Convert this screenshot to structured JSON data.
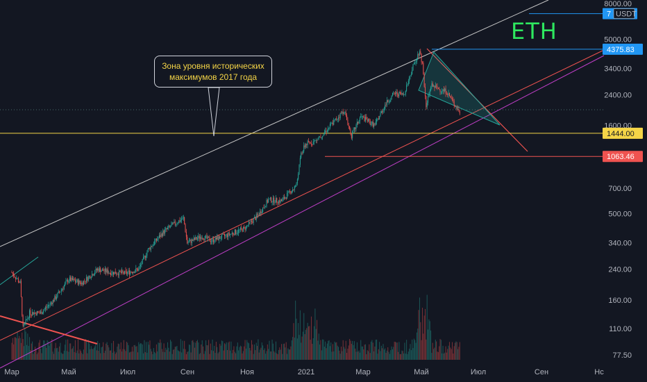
{
  "symbol_label": "ETH",
  "annotation": {
    "line1": "Зона уровня исторических",
    "line2": "максимумов 2017 года"
  },
  "colors": {
    "background": "#131722",
    "up": "#26a69a",
    "down": "#ef5350",
    "axis_text": "#b2b5be",
    "yellow_level": "#f5d547",
    "red_level": "#ef5350",
    "blue_tag": "#2196f3",
    "white_line": "#c8c8c8",
    "magenta_line": "#c03fc8",
    "eth_text": "#2ee85f"
  },
  "chart_data": {
    "type": "candlestick",
    "scale": "log",
    "y_ticks": [
      "8000.00",
      "5000.00",
      "3400.00",
      "2400.00",
      "1600.00",
      "1063.46",
      "700.00",
      "500.00",
      "340.00",
      "240.00",
      "160.00",
      "110.00",
      "77.50"
    ],
    "y_tick_values": [
      8000,
      5000,
      3400,
      2400,
      1600,
      1063.46,
      700,
      500,
      340,
      240,
      160,
      110,
      77.5
    ],
    "x_ticks": [
      "Мар",
      "Май",
      "Июл",
      "Сен",
      "Ноя",
      "2021",
      "Мар",
      "Май",
      "Июл",
      "Сен",
      "Нс"
    ],
    "price_tags": [
      {
        "label": "7",
        "value": 7000,
        "bg": "#2196f3",
        "fg": "#ffffff",
        "suffix": "USDT"
      },
      {
        "label": "4375.83",
        "value": 4375.83,
        "bg": "#2196f3",
        "fg": "#ffffff"
      },
      {
        "label": "1444.00",
        "value": 1444,
        "bg": "#f5d547",
        "fg": "#131722"
      },
      {
        "label": "1063.46",
        "value": 1063.46,
        "bg": "#ef5350",
        "fg": "#ffffff"
      }
    ],
    "horizontal_levels": [
      {
        "value": 1444,
        "color": "#f5d547"
      },
      {
        "value": 1063.46,
        "color": "#ef5350"
      },
      {
        "value": 4375.83,
        "color": "#2196f3"
      },
      {
        "value": 7000,
        "color": "#2196f3"
      }
    ],
    "price_path": [
      [
        "2020-03-01",
        230
      ],
      [
        "2020-03-10",
        200
      ],
      [
        "2020-03-13",
        110
      ],
      [
        "2020-03-20",
        135
      ],
      [
        "2020-04-01",
        135
      ],
      [
        "2020-04-15",
        160
      ],
      [
        "2020-05-01",
        210
      ],
      [
        "2020-05-15",
        200
      ],
      [
        "2020-06-01",
        240
      ],
      [
        "2020-06-15",
        230
      ],
      [
        "2020-07-01",
        228
      ],
      [
        "2020-07-15",
        240
      ],
      [
        "2020-07-25",
        310
      ],
      [
        "2020-08-10",
        390
      ],
      [
        "2020-08-20",
        430
      ],
      [
        "2020-09-01",
        470
      ],
      [
        "2020-09-05",
        340
      ],
      [
        "2020-09-20",
        370
      ],
      [
        "2020-10-01",
        350
      ],
      [
        "2020-10-20",
        380
      ],
      [
        "2020-11-05",
        410
      ],
      [
        "2020-11-20",
        490
      ],
      [
        "2020-12-01",
        600
      ],
      [
        "2020-12-15",
        590
      ],
      [
        "2020-12-31",
        730
      ],
      [
        "2021-01-05",
        1100
      ],
      [
        "2021-01-10",
        1250
      ],
      [
        "2021-01-20",
        1300
      ],
      [
        "2021-02-01",
        1500
      ],
      [
        "2021-02-20",
        1950
      ],
      [
        "2021-02-28",
        1400
      ],
      [
        "2021-03-10",
        1800
      ],
      [
        "2021-03-25",
        1600
      ],
      [
        "2021-04-05",
        2100
      ],
      [
        "2021-04-15",
        2450
      ],
      [
        "2021-04-25",
        2400
      ],
      [
        "2021-05-05",
        3500
      ],
      [
        "2021-05-12",
        4300
      ],
      [
        "2021-05-15",
        3600
      ],
      [
        "2021-05-19",
        2100
      ],
      [
        "2021-05-25",
        2700
      ],
      [
        "2021-06-01",
        2600
      ],
      [
        "2021-06-10",
        2500
      ],
      [
        "2021-06-20",
        2050
      ],
      [
        "2021-06-24",
        1900
      ]
    ],
    "volume_profile": "volume bars along the bottom, peaks near 2021 and May 2021"
  }
}
